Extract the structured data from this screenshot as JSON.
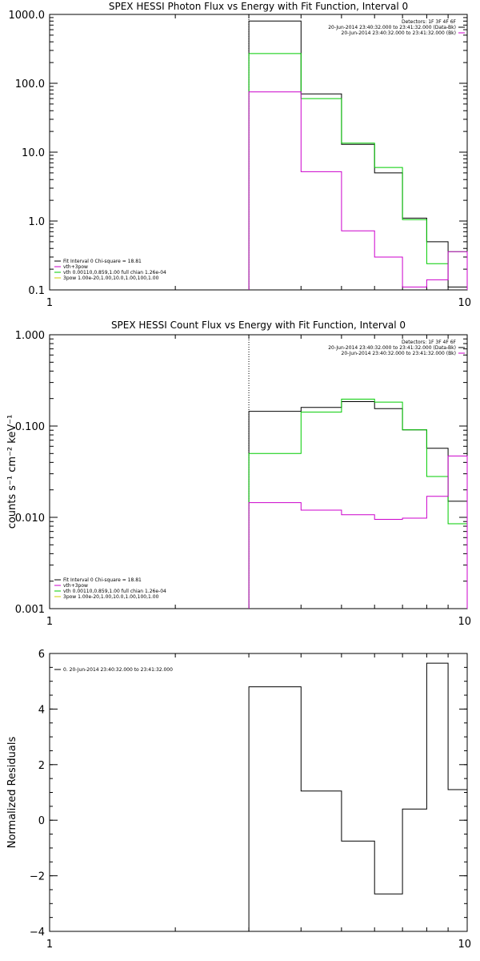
{
  "chart_data": [
    {
      "type": "line",
      "title": "SPEX HESSI Photon Flux vs Energy with Fit Function, Interval 0",
      "xlabel": "",
      "ylabel": "",
      "x_scale": "log",
      "y_scale": "log",
      "xlim": [
        1,
        10
      ],
      "ylim": [
        0.1,
        1000
      ],
      "x_ticks": [
        {
          "v": 1,
          "label": "1"
        },
        {
          "v": 10,
          "label": "10"
        }
      ],
      "y_ticks": [
        {
          "v": 0.1,
          "label": "0.1"
        },
        {
          "v": 1,
          "label": "1.0"
        },
        {
          "v": 10,
          "label": "10.0"
        },
        {
          "v": 100,
          "label": "100.0"
        },
        {
          "v": 1000,
          "label": "1000.0"
        }
      ],
      "vline_x": 3.0,
      "bin_edges": [
        3.0,
        4.0,
        5.0,
        6.0,
        7.0,
        8.0,
        9.0,
        10.0
      ],
      "series": [
        {
          "color": "#000000",
          "values": [
            800,
            70,
            13,
            5.0,
            1.1,
            0.5,
            0.11
          ]
        },
        {
          "color": "#00cc00",
          "values": [
            270,
            60,
            13.5,
            6.0,
            1.05,
            0.24,
            0.36
          ]
        },
        {
          "color": "#cc00cc",
          "values": [
            75,
            5.2,
            0.72,
            0.3,
            0.11,
            0.14,
            0.36
          ]
        }
      ],
      "legend_right": [
        "Detectors: 1F 3F 4F 6F",
        "20-Jun-2014 23:40:32.000 to 23:41:32.000 (Data-Bk)",
        "20-Jun-2014 23:40:32.000 to 23:41:32.000 (Bk)"
      ],
      "legend_left": [
        "Fit Interval 0   Chi-square = 18.81",
        "vth+3pow",
        "vth 0.00110,0.859,1.00  full chian 1.26e-04",
        "3pow 1.00e-20,1.00,10.0,1.00,100,1.00"
      ],
      "legend_left_colors": [
        "#000000",
        "#cc00cc",
        "#00cc00",
        "#cccc00"
      ]
    },
    {
      "type": "line",
      "title": "SPEX HESSI Count Flux vs Energy with Fit Function, Interval 0",
      "xlabel": "",
      "ylabel": "counts s⁻¹ cm⁻² keV⁻¹",
      "x_scale": "log",
      "y_scale": "log",
      "xlim": [
        1,
        10
      ],
      "ylim": [
        0.001,
        1.0
      ],
      "x_ticks": [
        {
          "v": 1,
          "label": "1"
        },
        {
          "v": 10,
          "label": "10"
        }
      ],
      "y_ticks": [
        {
          "v": 0.001,
          "label": "0.001"
        },
        {
          "v": 0.01,
          "label": "0.010"
        },
        {
          "v": 0.1,
          "label": "0.100"
        },
        {
          "v": 1.0,
          "label": "1.000"
        }
      ],
      "vline_x": 3.0,
      "bin_edges": [
        3.0,
        4.0,
        5.0,
        6.0,
        7.0,
        8.0,
        9.0,
        10.0
      ],
      "series": [
        {
          "color": "#000000",
          "values": [
            0.145,
            0.16,
            0.185,
            0.155,
            0.091,
            0.057,
            0.015
          ]
        },
        {
          "color": "#00cc00",
          "values": [
            0.05,
            0.142,
            0.197,
            0.183,
            0.091,
            0.028,
            0.0085
          ]
        },
        {
          "color": "#cc00cc",
          "values": [
            0.0145,
            0.012,
            0.0107,
            0.0095,
            0.0098,
            0.017,
            0.047
          ]
        }
      ],
      "legend_right": [
        "Detectors: 1F 3F 4F 6F",
        "20-Jun-2014 23:40:32.000 to 23:41:32.000 (Data-Bk)",
        "20-Jun-2014 23:40:32.000 to 23:41:32.000 (Bk)"
      ],
      "legend_left": [
        "Fit Interval 0   Chi-square = 18.81",
        "vth+3pow",
        "vth 0.00110,0.859,1.00  full chian 1.26e-04",
        "3pow 1.00e-20,1.00,10.0,1.00,100,1.00"
      ],
      "legend_left_colors": [
        "#000000",
        "#cc00cc",
        "#00cc00",
        "#cccc00"
      ]
    },
    {
      "type": "line",
      "title": "",
      "xlabel": "",
      "ylabel": "Normalized Residuals",
      "x_scale": "log",
      "y_scale": "linear",
      "xlim": [
        1,
        10
      ],
      "ylim": [
        -4,
        6
      ],
      "x_ticks": [
        {
          "v": 1,
          "label": "1"
        },
        {
          "v": 10,
          "label": "10"
        }
      ],
      "y_ticks": [
        {
          "v": -4,
          "label": "−4"
        },
        {
          "v": -2,
          "label": "−2"
        },
        {
          "v": 0,
          "label": "0"
        },
        {
          "v": 2,
          "label": "2"
        },
        {
          "v": 4,
          "label": "4"
        },
        {
          "v": 6,
          "label": "6"
        }
      ],
      "bin_edges": [
        3.0,
        4.0,
        5.0,
        6.0,
        7.0,
        8.0,
        9.0,
        10.0
      ],
      "series": [
        {
          "color": "#000000",
          "values": [
            4.8,
            1.05,
            -0.75,
            -2.65,
            0.4,
            5.65,
            1.1
          ]
        }
      ],
      "legend_left": [
        "0. 20-Jun-2014 23:40:32.000 to 23:41:32.000"
      ],
      "legend_left_colors": [
        "#000000"
      ]
    }
  ]
}
